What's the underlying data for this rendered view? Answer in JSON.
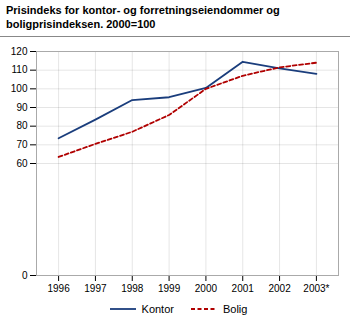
{
  "chart_data": {
    "type": "line",
    "title": "Prisindeks for kontor- og forretningseiendommer og\nboligprisindeksen. 2000=100",
    "x": [
      1996,
      1997,
      1998,
      1999,
      2000,
      2001,
      2002,
      2003
    ],
    "series": [
      {
        "name": "Kontor",
        "color": "#1a3d7c",
        "line_style": "solid",
        "values": [
          73.5,
          83.5,
          94.0,
          95.5,
          100.5,
          114.5,
          111.0,
          108.0
        ]
      },
      {
        "name": "Bolig",
        "color": "#b00000",
        "line_style": "dashed",
        "values": [
          63.5,
          70.5,
          77.0,
          86.0,
          100.0,
          107.0,
          111.5,
          114.0
        ]
      }
    ],
    "xlim": [
      1995.4,
      2003.6
    ],
    "xticks": [
      1996,
      1997,
      1998,
      1999,
      2000,
      2001,
      2002,
      {
        "value": 2003,
        "label": "2003*"
      }
    ],
    "ylim": [
      0,
      120
    ],
    "yticks": [
      0,
      60,
      70,
      80,
      90,
      100,
      110,
      120
    ],
    "grid": true,
    "legend": "bottom"
  }
}
